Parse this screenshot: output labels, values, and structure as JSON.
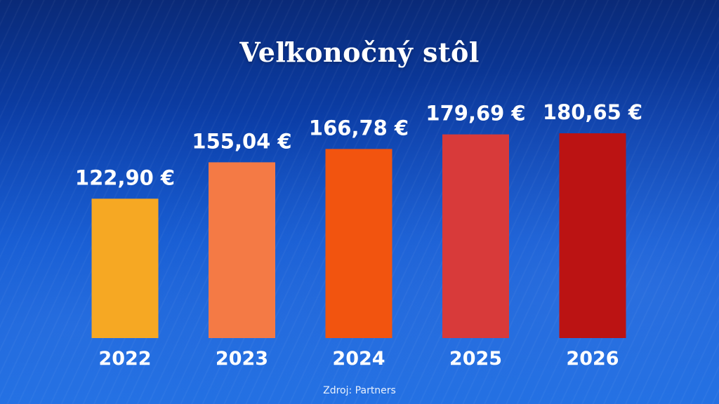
{
  "chart_data": {
    "type": "bar",
    "title": "Veľkonočný stôl",
    "categories": [
      "2022",
      "2023",
      "2024",
      "2025",
      "2026"
    ],
    "values": [
      122.9,
      155.04,
      166.78,
      179.69,
      180.65
    ],
    "value_labels": [
      "122,90 €",
      "155,04 €",
      "166,78 €",
      "179,69 €",
      "180,65 €"
    ],
    "bar_colors": [
      "#f6a823",
      "#f47a45",
      "#f2540f",
      "#d83a3a",
      "#bb1313"
    ],
    "xlabel": "",
    "ylabel": "",
    "ylim": [
      0,
      180.65
    ],
    "grid": false,
    "legend": "none"
  },
  "source": "Zdroj: Partners",
  "colors": {
    "background_top": "#0a2a78",
    "background_bottom": "#1a6ae0",
    "text": "#ffffff"
  }
}
